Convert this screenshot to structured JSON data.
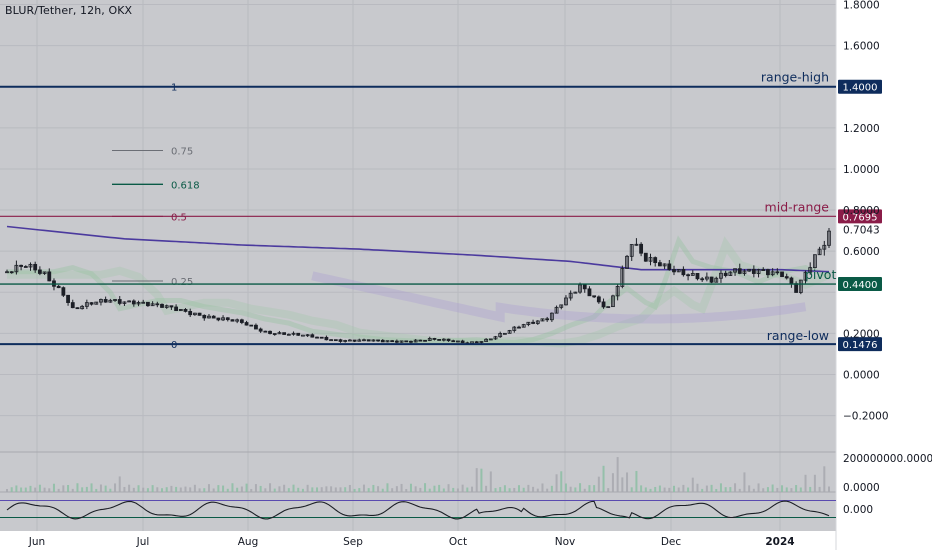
{
  "header": {
    "title": "BLUR/Tether, 12h, OKX"
  },
  "colors": {
    "background": "#c8c9cd",
    "grid": "#b9bac0",
    "candle": "#1c1f26",
    "navy": "#0e2c5c",
    "maroon": "#8a1c48",
    "green_line": "#0a5a46",
    "ma200": "#4b3a9e",
    "osc_band": "#5a4bb0",
    "osc_green_fill": "#2e8a55",
    "osc_purple_fill": "#8a4aa0"
  },
  "chart_data": [
    {
      "type": "candlestick",
      "title": "BLUR/Tether, 12h, OKX",
      "x_labels": [
        "Jun",
        "Jul",
        "Aug",
        "Sep",
        "Oct",
        "Nov",
        "Dec",
        "2024"
      ],
      "ylim": [
        -0.28,
        1.82
      ],
      "y_ticks": [
        1.8,
        1.6,
        1.2,
        1.0,
        0.8,
        0.6,
        0.2,
        0.0,
        -0.2
      ],
      "y_tick_labels": [
        "1.8000",
        "1.6000",
        "1.2000",
        "1.0000",
        "0.8000",
        "0.6000",
        "0.2000",
        "0.0000",
        "−0.2000"
      ],
      "close_path": [
        {
          "x": 0,
          "y": 0.5
        },
        {
          "x": 4,
          "y": 0.52
        },
        {
          "x": 8,
          "y": 0.49
        },
        {
          "x": 12,
          "y": 0.4
        },
        {
          "x": 14,
          "y": 0.32
        },
        {
          "x": 18,
          "y": 0.34
        },
        {
          "x": 22,
          "y": 0.36
        },
        {
          "x": 27,
          "y": 0.36
        },
        {
          "x": 32,
          "y": 0.33
        },
        {
          "x": 40,
          "y": 0.3
        },
        {
          "x": 45,
          "y": 0.27
        },
        {
          "x": 50,
          "y": 0.25
        },
        {
          "x": 55,
          "y": 0.21
        },
        {
          "x": 62,
          "y": 0.19
        },
        {
          "x": 70,
          "y": 0.17
        },
        {
          "x": 80,
          "y": 0.16
        },
        {
          "x": 90,
          "y": 0.17
        },
        {
          "x": 95,
          "y": 0.16
        },
        {
          "x": 98,
          "y": 0.155
        },
        {
          "x": 102,
          "y": 0.17
        },
        {
          "x": 106,
          "y": 0.2
        },
        {
          "x": 110,
          "y": 0.24
        },
        {
          "x": 115,
          "y": 0.28
        },
        {
          "x": 118,
          "y": 0.35
        },
        {
          "x": 122,
          "y": 0.42
        },
        {
          "x": 126,
          "y": 0.35
        },
        {
          "x": 128,
          "y": 0.33
        },
        {
          "x": 130,
          "y": 0.45
        },
        {
          "x": 133,
          "y": 0.65
        },
        {
          "x": 136,
          "y": 0.55
        },
        {
          "x": 140,
          "y": 0.52
        },
        {
          "x": 145,
          "y": 0.5
        },
        {
          "x": 150,
          "y": 0.45
        },
        {
          "x": 155,
          "y": 0.5
        },
        {
          "x": 160,
          "y": 0.52
        },
        {
          "x": 165,
          "y": 0.48
        },
        {
          "x": 168,
          "y": 0.4
        },
        {
          "x": 172,
          "y": 0.58
        },
        {
          "x": 175,
          "y": 0.7
        }
      ],
      "moving_average": [
        {
          "x": 0,
          "y": 0.72
        },
        {
          "x": 25,
          "y": 0.66
        },
        {
          "x": 50,
          "y": 0.63
        },
        {
          "x": 75,
          "y": 0.61
        },
        {
          "x": 100,
          "y": 0.58
        },
        {
          "x": 120,
          "y": 0.55
        },
        {
          "x": 135,
          "y": 0.51
        },
        {
          "x": 150,
          "y": 0.51
        },
        {
          "x": 165,
          "y": 0.51
        },
        {
          "x": 175,
          "y": 0.5
        }
      ],
      "horizontal_levels": [
        {
          "name": "range-high",
          "price": 1.4,
          "label": "1.4000",
          "role": "range"
        },
        {
          "name": "mid-range",
          "price": 0.7695,
          "label": "0.7695",
          "role": "mid"
        },
        {
          "name": "pivot",
          "price": 0.44,
          "label": "0.4400",
          "role": "pivot"
        },
        {
          "name": "range-low",
          "price": 0.1476,
          "label": "0.1476",
          "role": "range"
        }
      ],
      "last_price": {
        "price": 0.7043,
        "label": "0.7043"
      },
      "fib_levels": [
        {
          "label": "1",
          "price": 1.4,
          "style": "range"
        },
        {
          "label": "0.75",
          "price": 1.09,
          "style": "grey"
        },
        {
          "label": "0.618",
          "price": 0.925,
          "style": "green"
        },
        {
          "label": "0.5",
          "price": 0.7695,
          "style": "maroon"
        },
        {
          "label": "0.25",
          "price": 0.455,
          "style": "grey"
        },
        {
          "label": "0",
          "price": 0.1476,
          "style": "range"
        }
      ]
    },
    {
      "type": "bar",
      "name": "volume",
      "y_tick_labels": [
        "200000000.0000",
        "0.0000"
      ]
    },
    {
      "type": "line",
      "name": "oscillator",
      "y_tick_labels": [
        "0.000"
      ]
    }
  ]
}
